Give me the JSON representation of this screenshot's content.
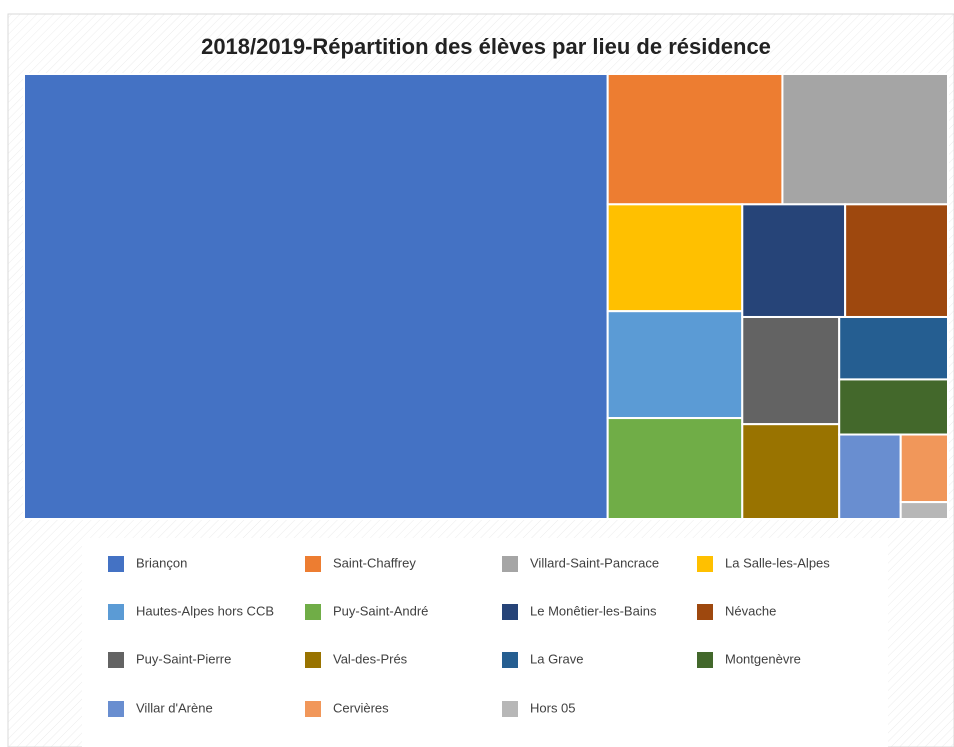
{
  "chart_data": {
    "type": "treemap",
    "title": "2018/2019-Répartition des élèves par lieu de résidence",
    "categories": [
      "Briançon",
      "Saint-Chaffrey",
      "Villard-Saint-Pancrace",
      "La Salle-les-Alpes",
      "Hautes-Alpes hors CCB",
      "Puy-Saint-André",
      "Le Monêtier-les-Bains",
      "Névache",
      "Puy-Saint-Pierre",
      "Val-des-Prés",
      "La Grave",
      "Montgenèvre",
      "Villar d'Arène",
      "Cervières",
      "Hors 05"
    ],
    "values": [
      650,
      57,
      54,
      36,
      36,
      34,
      29,
      29,
      26,
      23,
      17,
      15,
      13,
      8,
      2
    ],
    "colors": [
      "#4472c4",
      "#ed7d31",
      "#a5a5a5",
      "#ffc000",
      "#5b9bd5",
      "#70ad47",
      "#264478",
      "#9e480e",
      "#636363",
      "#997300",
      "#255e91",
      "#43682b",
      "#698ed0",
      "#f1975a",
      "#b7b7b7"
    ],
    "legend": "bottom"
  }
}
